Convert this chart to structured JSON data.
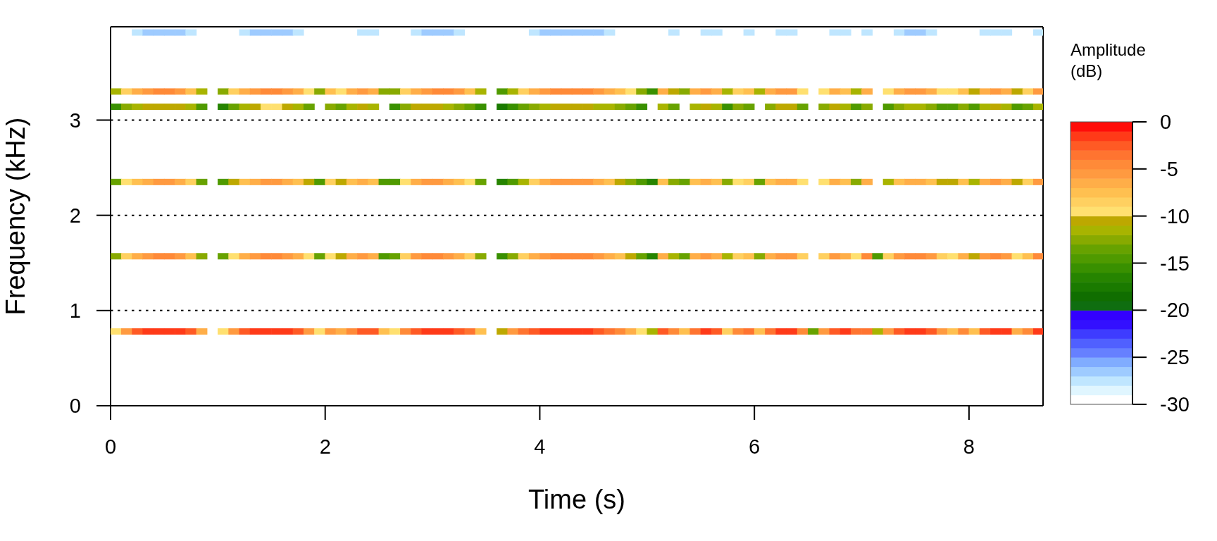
{
  "chart_data": {
    "type": "scatter",
    "xlabel": "Time (s)",
    "ylabel": "Frequency (kHz)",
    "clabel": "Amplitude (dB)",
    "x": [
      0.05,
      0.15,
      0.25,
      0.35,
      0.45,
      0.55,
      0.65,
      0.75,
      0.85,
      1.05,
      1.15,
      1.25,
      1.35,
      1.45,
      1.55,
      1.65,
      1.75,
      1.85,
      1.95,
      2.05,
      2.15,
      2.25,
      2.35,
      2.45,
      2.55,
      2.65,
      2.75,
      2.85,
      2.95,
      3.05,
      3.15,
      3.25,
      3.35,
      3.45,
      3.65,
      3.75,
      3.85,
      3.95,
      4.05,
      4.15,
      4.25,
      4.35,
      4.45,
      4.55,
      4.65,
      4.75,
      4.85,
      4.95,
      5.05,
      5.15,
      5.25,
      5.35,
      5.45,
      5.55,
      5.65,
      5.75,
      5.85,
      5.95,
      6.05,
      6.15,
      6.25,
      6.35,
      6.45,
      6.55,
      6.65,
      6.75,
      6.85,
      6.95,
      7.05,
      7.15,
      7.25,
      7.35,
      7.45,
      7.55,
      7.65,
      7.75,
      7.85,
      7.95,
      8.05,
      8.15,
      8.25,
      8.35,
      8.45,
      8.55,
      8.65,
      0.05,
      0.15,
      0.25,
      0.35,
      0.45,
      0.55,
      0.65,
      0.75,
      0.85,
      1.05,
      1.15,
      1.25,
      1.35,
      1.45,
      1.55,
      1.65,
      1.75,
      1.85,
      1.95,
      2.05,
      2.15,
      2.25,
      2.35,
      2.45,
      2.55,
      2.65,
      2.75,
      2.85,
      2.95,
      3.05,
      3.15,
      3.25,
      3.35,
      3.45,
      3.65,
      3.75,
      3.85,
      3.95,
      4.05,
      4.15,
      4.25,
      4.35,
      4.45,
      4.55,
      4.65,
      4.75,
      4.85,
      4.95,
      5.05,
      5.15,
      5.25,
      5.35,
      5.45,
      5.55,
      5.65,
      5.75,
      5.85,
      5.95,
      6.05,
      6.15,
      6.25,
      6.35,
      6.45,
      6.65,
      6.75,
      6.85,
      6.95,
      7.05,
      7.15,
      7.25,
      7.35,
      7.45,
      7.55,
      7.65,
      7.75,
      7.85,
      7.95,
      8.05,
      8.15,
      8.25,
      8.35,
      8.45,
      8.55,
      8.65,
      0.05,
      0.15,
      0.25,
      0.35,
      0.45,
      0.55,
      0.65,
      0.75,
      0.85,
      1.05,
      1.15,
      1.25,
      1.35,
      1.45,
      1.55,
      1.65,
      1.75,
      1.85,
      1.95,
      2.05,
      2.15,
      2.25,
      2.35,
      2.45,
      2.55,
      2.65,
      2.75,
      2.85,
      2.95,
      3.05,
      3.15,
      3.25,
      3.35,
      3.45,
      3.65,
      3.75,
      3.85,
      3.95,
      4.05,
      4.15,
      4.25,
      4.35,
      4.45,
      4.55,
      4.65,
      4.75,
      4.85,
      4.95,
      5.05,
      5.15,
      5.25,
      5.35,
      5.45,
      5.55,
      5.65,
      5.75,
      5.85,
      5.95,
      6.05,
      6.15,
      6.25,
      6.35,
      6.45,
      6.65,
      6.75,
      6.85,
      6.95,
      7.05,
      7.25,
      7.35,
      7.45,
      7.55,
      7.65,
      7.75,
      7.85,
      7.95,
      8.05,
      8.15,
      8.25,
      8.35,
      8.45,
      8.55,
      8.65,
      0.05,
      0.15,
      0.25,
      0.35,
      0.45,
      0.55,
      0.65,
      0.75,
      0.85,
      1.05,
      1.15,
      1.25,
      1.35,
      1.45,
      1.55,
      1.65,
      1.75,
      1.85,
      2.05,
      2.15,
      2.25,
      2.35,
      2.45,
      2.65,
      2.75,
      2.85,
      2.95,
      3.05,
      3.15,
      3.25,
      3.35,
      3.45,
      3.65,
      3.75,
      3.85,
      3.95,
      4.05,
      4.15,
      4.25,
      4.35,
      4.45,
      4.55,
      4.65,
      4.75,
      4.85,
      4.95,
      5.15,
      5.25,
      5.45,
      5.55,
      5.65,
      5.75,
      5.85,
      5.95,
      6.15,
      6.25,
      6.35,
      6.45,
      6.65,
      6.75,
      6.85,
      6.95,
      7.05,
      7.25,
      7.35,
      7.45,
      7.55,
      7.65,
      7.75,
      7.85,
      7.95,
      8.05,
      8.15,
      8.25,
      8.35,
      8.45,
      8.55,
      8.65,
      0.05,
      0.15,
      0.25,
      0.35,
      0.45,
      0.55,
      0.65,
      0.75,
      0.85,
      1.05,
      1.15,
      1.25,
      1.35,
      1.45,
      1.55,
      1.65,
      1.75,
      1.85,
      1.95,
      2.05,
      2.15,
      2.25,
      2.35,
      2.45,
      2.55,
      2.65,
      2.75,
      2.85,
      2.95,
      3.05,
      3.15,
      3.25,
      3.35,
      3.45,
      3.65,
      3.75,
      3.85,
      3.95,
      4.05,
      4.15,
      4.25,
      4.35,
      4.45,
      4.55,
      4.65,
      4.75,
      4.85,
      4.95,
      5.05,
      5.15,
      5.25,
      5.35,
      5.45,
      5.55,
      5.65,
      5.75,
      5.85,
      5.95,
      6.05,
      6.15,
      6.25,
      6.35,
      6.45,
      6.65,
      6.75,
      6.85,
      6.95,
      7.05,
      7.25,
      7.35,
      7.45,
      7.55,
      7.65,
      7.75,
      7.85,
      7.95,
      8.05,
      8.15,
      8.25,
      8.35,
      8.45,
      8.55,
      8.65,
      0.25,
      0.35,
      0.45,
      0.55,
      0.65,
      0.75,
      1.25,
      1.35,
      1.45,
      1.55,
      1.65,
      1.75,
      2.35,
      2.45,
      2.85,
      2.95,
      3.05,
      3.15,
      3.25,
      3.95,
      4.05,
      4.15,
      4.25,
      4.35,
      4.45,
      4.55,
      4.65,
      5.25,
      5.55,
      5.65,
      5.95,
      6.25,
      6.35,
      6.75,
      6.85,
      7.05,
      7.35,
      7.45,
      7.55,
      7.65,
      8.15,
      8.25,
      8.35,
      8.65
    ],
    "values": [
      0.78,
      0.78,
      0.78,
      0.78,
      0.78,
      0.78,
      0.78,
      0.78,
      0.78,
      0.78,
      0.78,
      0.78,
      0.78,
      0.78,
      0.78,
      0.78,
      0.78,
      0.78,
      0.78,
      0.78,
      0.78,
      0.78,
      0.78,
      0.78,
      0.78,
      0.78,
      0.78,
      0.78,
      0.78,
      0.78,
      0.78,
      0.78,
      0.78,
      0.78,
      0.78,
      0.78,
      0.78,
      0.78,
      0.78,
      0.78,
      0.78,
      0.78,
      0.78,
      0.78,
      0.78,
      0.78,
      0.78,
      0.78,
      0.78,
      0.78,
      0.78,
      0.78,
      0.78,
      0.78,
      0.78,
      0.78,
      0.78,
      0.78,
      0.78,
      0.78,
      0.78,
      0.78,
      0.78,
      0.78,
      0.78,
      0.78,
      0.78,
      0.78,
      0.78,
      0.78,
      0.78,
      0.78,
      0.78,
      0.78,
      0.78,
      0.78,
      0.78,
      0.78,
      0.78,
      0.78,
      0.78,
      0.78,
      0.78,
      0.78,
      0.78,
      1.57,
      1.57,
      1.57,
      1.57,
      1.57,
      1.57,
      1.57,
      1.57,
      1.57,
      1.57,
      1.57,
      1.57,
      1.57,
      1.57,
      1.57,
      1.57,
      1.57,
      1.57,
      1.57,
      1.57,
      1.57,
      1.57,
      1.57,
      1.57,
      1.57,
      1.57,
      1.57,
      1.57,
      1.57,
      1.57,
      1.57,
      1.57,
      1.57,
      1.57,
      1.57,
      1.57,
      1.57,
      1.57,
      1.57,
      1.57,
      1.57,
      1.57,
      1.57,
      1.57,
      1.57,
      1.57,
      1.57,
      1.57,
      1.57,
      1.57,
      1.57,
      1.57,
      1.57,
      1.57,
      1.57,
      1.57,
      1.57,
      1.57,
      1.57,
      1.57,
      1.57,
      1.57,
      1.57,
      1.57,
      1.57,
      1.57,
      1.57,
      1.57,
      1.57,
      1.57,
      1.57,
      1.57,
      1.57,
      1.57,
      1.57,
      1.57,
      1.57,
      1.57,
      1.57,
      1.57,
      1.57,
      1.57,
      1.57,
      1.57,
      2.35,
      2.35,
      2.35,
      2.35,
      2.35,
      2.35,
      2.35,
      2.35,
      2.35,
      2.35,
      2.35,
      2.35,
      2.35,
      2.35,
      2.35,
      2.35,
      2.35,
      2.35,
      2.35,
      2.35,
      2.35,
      2.35,
      2.35,
      2.35,
      2.35,
      2.35,
      2.35,
      2.35,
      2.35,
      2.35,
      2.35,
      2.35,
      2.35,
      2.35,
      2.35,
      2.35,
      2.35,
      2.35,
      2.35,
      2.35,
      2.35,
      2.35,
      2.35,
      2.35,
      2.35,
      2.35,
      2.35,
      2.35,
      2.35,
      2.35,
      2.35,
      2.35,
      2.35,
      2.35,
      2.35,
      2.35,
      2.35,
      2.35,
      2.35,
      2.35,
      2.35,
      2.35,
      2.35,
      2.35,
      2.35,
      2.35,
      2.35,
      2.35,
      2.35,
      2.35,
      2.35,
      2.35,
      2.35,
      2.35,
      2.35,
      2.35,
      2.35,
      2.35,
      2.35,
      2.35,
      2.35,
      2.35,
      2.35,
      3.14,
      3.14,
      3.14,
      3.14,
      3.14,
      3.14,
      3.14,
      3.14,
      3.14,
      3.14,
      3.14,
      3.14,
      3.14,
      3.14,
      3.14,
      3.14,
      3.14,
      3.14,
      3.14,
      3.14,
      3.14,
      3.14,
      3.14,
      3.14,
      3.14,
      3.14,
      3.14,
      3.14,
      3.14,
      3.14,
      3.14,
      3.14,
      3.14,
      3.14,
      3.14,
      3.14,
      3.14,
      3.14,
      3.14,
      3.14,
      3.14,
      3.14,
      3.14,
      3.14,
      3.14,
      3.14,
      3.14,
      3.14,
      3.14,
      3.14,
      3.14,
      3.14,
      3.14,
      3.14,
      3.14,
      3.14,
      3.14,
      3.14,
      3.14,
      3.14,
      3.14,
      3.14,
      3.14,
      3.14,
      3.14,
      3.14,
      3.14,
      3.14,
      3.14,
      3.14,
      3.14,
      3.14,
      3.14,
      3.14,
      3.14,
      3.14,
      3.14,
      3.14,
      3.3,
      3.3,
      3.3,
      3.3,
      3.3,
      3.3,
      3.3,
      3.3,
      3.3,
      3.3,
      3.3,
      3.3,
      3.3,
      3.3,
      3.3,
      3.3,
      3.3,
      3.3,
      3.3,
      3.3,
      3.3,
      3.3,
      3.3,
      3.3,
      3.3,
      3.3,
      3.3,
      3.3,
      3.3,
      3.3,
      3.3,
      3.3,
      3.3,
      3.3,
      3.3,
      3.3,
      3.3,
      3.3,
      3.3,
      3.3,
      3.3,
      3.3,
      3.3,
      3.3,
      3.3,
      3.3,
      3.3,
      3.3,
      3.3,
      3.3,
      3.3,
      3.3,
      3.3,
      3.3,
      3.3,
      3.3,
      3.3,
      3.3,
      3.3,
      3.3,
      3.3,
      3.3,
      3.3,
      3.3,
      3.3,
      3.3,
      3.3,
      3.3,
      3.3,
      3.3,
      3.3,
      3.3,
      3.3,
      3.3,
      3.3,
      3.3,
      3.3,
      3.3,
      3.3,
      3.3,
      3.3,
      3.3,
      3.3,
      3.92,
      3.92,
      3.92,
      3.92,
      3.92,
      3.92,
      3.92,
      3.92,
      3.92,
      3.92,
      3.92,
      3.92,
      3.92,
      3.92,
      3.92,
      3.92,
      3.92,
      3.92,
      3.92,
      3.92,
      3.92,
      3.92,
      3.92,
      3.92,
      3.92,
      3.92,
      3.92,
      3.92,
      3.92,
      3.92,
      3.92,
      3.92,
      3.92,
      3.92,
      3.92,
      3.92,
      3.92,
      3.92,
      3.92,
      3.92,
      3.92,
      3.92,
      3.92,
      3.92
    ],
    "cvalues": [
      -10,
      -6,
      -3,
      -2,
      -2,
      -2,
      -2,
      -3,
      -7,
      -10,
      -6,
      -3,
      -2,
      -2,
      -2,
      -2,
      -3,
      -6,
      -10,
      -6,
      -7,
      -5,
      -3,
      -3,
      -8,
      -10,
      -5,
      -3,
      -2,
      -2,
      -2,
      -3,
      -4,
      -8,
      -11,
      -6,
      -4,
      -3,
      -2,
      -2,
      -2,
      -2,
      -2,
      -3,
      -4,
      -5,
      -7,
      -10,
      -12,
      -3,
      -5,
      -8,
      -4,
      -2,
      -3,
      -9,
      -5,
      -4,
      -8,
      -4,
      -2,
      -2,
      -5,
      -14,
      -6,
      -3,
      -2,
      -4,
      -4,
      -12,
      -6,
      -3,
      -2,
      -2,
      -3,
      -6,
      -8,
      -5,
      -8,
      -3,
      -2,
      -2,
      -7,
      -5,
      -2,
      -13,
      -9,
      -7,
      -6,
      -5,
      -5,
      -6,
      -8,
      -13,
      -14,
      -10,
      -7,
      -6,
      -5,
      -5,
      -6,
      -7,
      -10,
      -14,
      -10,
      -11,
      -7,
      -6,
      -7,
      -15,
      -14,
      -9,
      -6,
      -5,
      -5,
      -6,
      -7,
      -9,
      -13,
      -16,
      -13,
      -9,
      -7,
      -6,
      -5,
      -5,
      -5,
      -5,
      -6,
      -7,
      -8,
      -11,
      -14,
      -17,
      -7,
      -12,
      -14,
      -7,
      -6,
      -7,
      -12,
      -9,
      -8,
      -13,
      -7,
      -6,
      -6,
      -9,
      -9,
      -6,
      -7,
      -10,
      -5,
      -15,
      -9,
      -6,
      -5,
      -5,
      -6,
      -9,
      -10,
      -7,
      -11,
      -6,
      -5,
      -6,
      -10,
      -8,
      -5,
      -14,
      -10,
      -8,
      -7,
      -6,
      -6,
      -7,
      -9,
      -14,
      -15,
      -11,
      -8,
      -7,
      -6,
      -6,
      -7,
      -8,
      -11,
      -15,
      -9,
      -11,
      -8,
      -7,
      -8,
      -15,
      -15,
      -10,
      -7,
      -6,
      -6,
      -7,
      -8,
      -10,
      -14,
      -17,
      -15,
      -12,
      -9,
      -7,
      -6,
      -6,
      -6,
      -6,
      -7,
      -8,
      -11,
      -13,
      -15,
      -17,
      -8,
      -13,
      -14,
      -8,
      -7,
      -8,
      -13,
      -10,
      -9,
      -14,
      -8,
      -7,
      -7,
      -10,
      -10,
      -7,
      -8,
      -13,
      -7,
      -12,
      -8,
      -7,
      -7,
      -8,
      -11,
      -11,
      -8,
      -12,
      -7,
      -6,
      -7,
      -11,
      -9,
      -6,
      -16,
      -13,
      -12,
      -11,
      -11,
      -11,
      -11,
      -12,
      -15,
      -17,
      -14,
      -12,
      -11,
      -10,
      -10,
      -11,
      -12,
      -14,
      -13,
      -14,
      -12,
      -11,
      -12,
      -16,
      -13,
      -11,
      -11,
      -11,
      -12,
      -13,
      -14,
      -16,
      -18,
      -16,
      -14,
      -13,
      -12,
      -11,
      -11,
      -11,
      -11,
      -12,
      -12,
      -13,
      -14,
      -16,
      -12,
      -14,
      -12,
      -11,
      -12,
      -16,
      -13,
      -14,
      -13,
      -11,
      -11,
      -14,
      -13,
      -11,
      -12,
      -15,
      -13,
      -15,
      -13,
      -12,
      -12,
      -13,
      -15,
      -15,
      -13,
      -15,
      -12,
      -11,
      -12,
      -15,
      -14,
      -12,
      -12,
      -9,
      -7,
      -6,
      -5,
      -5,
      -6,
      -8,
      -12,
      -13,
      -9,
      -7,
      -6,
      -5,
      -5,
      -6,
      -7,
      -10,
      -13,
      -8,
      -10,
      -7,
      -6,
      -7,
      -13,
      -13,
      -9,
      -7,
      -6,
      -5,
      -5,
      -6,
      -8,
      -12,
      -15,
      -12,
      -9,
      -7,
      -6,
      -5,
      -5,
      -5,
      -5,
      -6,
      -7,
      -8,
      -10,
      -13,
      -16,
      -7,
      -11,
      -13,
      -7,
      -6,
      -7,
      -12,
      -9,
      -8,
      -12,
      -7,
      -6,
      -6,
      -10,
      -10,
      -7,
      -8,
      -12,
      -7,
      -10,
      -7,
      -6,
      -6,
      -7,
      -10,
      -10,
      -8,
      -11,
      -7,
      -6,
      -7,
      -11,
      -9,
      -6,
      -28,
      -27,
      -27,
      -27,
      -27,
      -28,
      -28,
      -27,
      -27,
      -27,
      -27,
      -28,
      -28,
      -28,
      -28,
      -27,
      -27,
      -27,
      -28,
      -28,
      -27,
      -27,
      -27,
      -27,
      -27,
      -27,
      -28,
      -28,
      -28,
      -28,
      -28,
      -28,
      -28,
      -28,
      -28,
      -28,
      -28,
      -27,
      -27,
      -28,
      -28,
      -28,
      -28,
      -28
    ],
    "xlim": [
      0,
      8.69
    ],
    "xticks": [
      0,
      2,
      4,
      6,
      8
    ],
    "ylim": [
      0,
      3.98
    ],
    "yticks": [
      0,
      1,
      2,
      3
    ],
    "clim": [
      -30,
      0
    ],
    "cticks": [
      -30,
      -25,
      -20,
      -15,
      -10,
      -5,
      0
    ],
    "grid": "y"
  }
}
